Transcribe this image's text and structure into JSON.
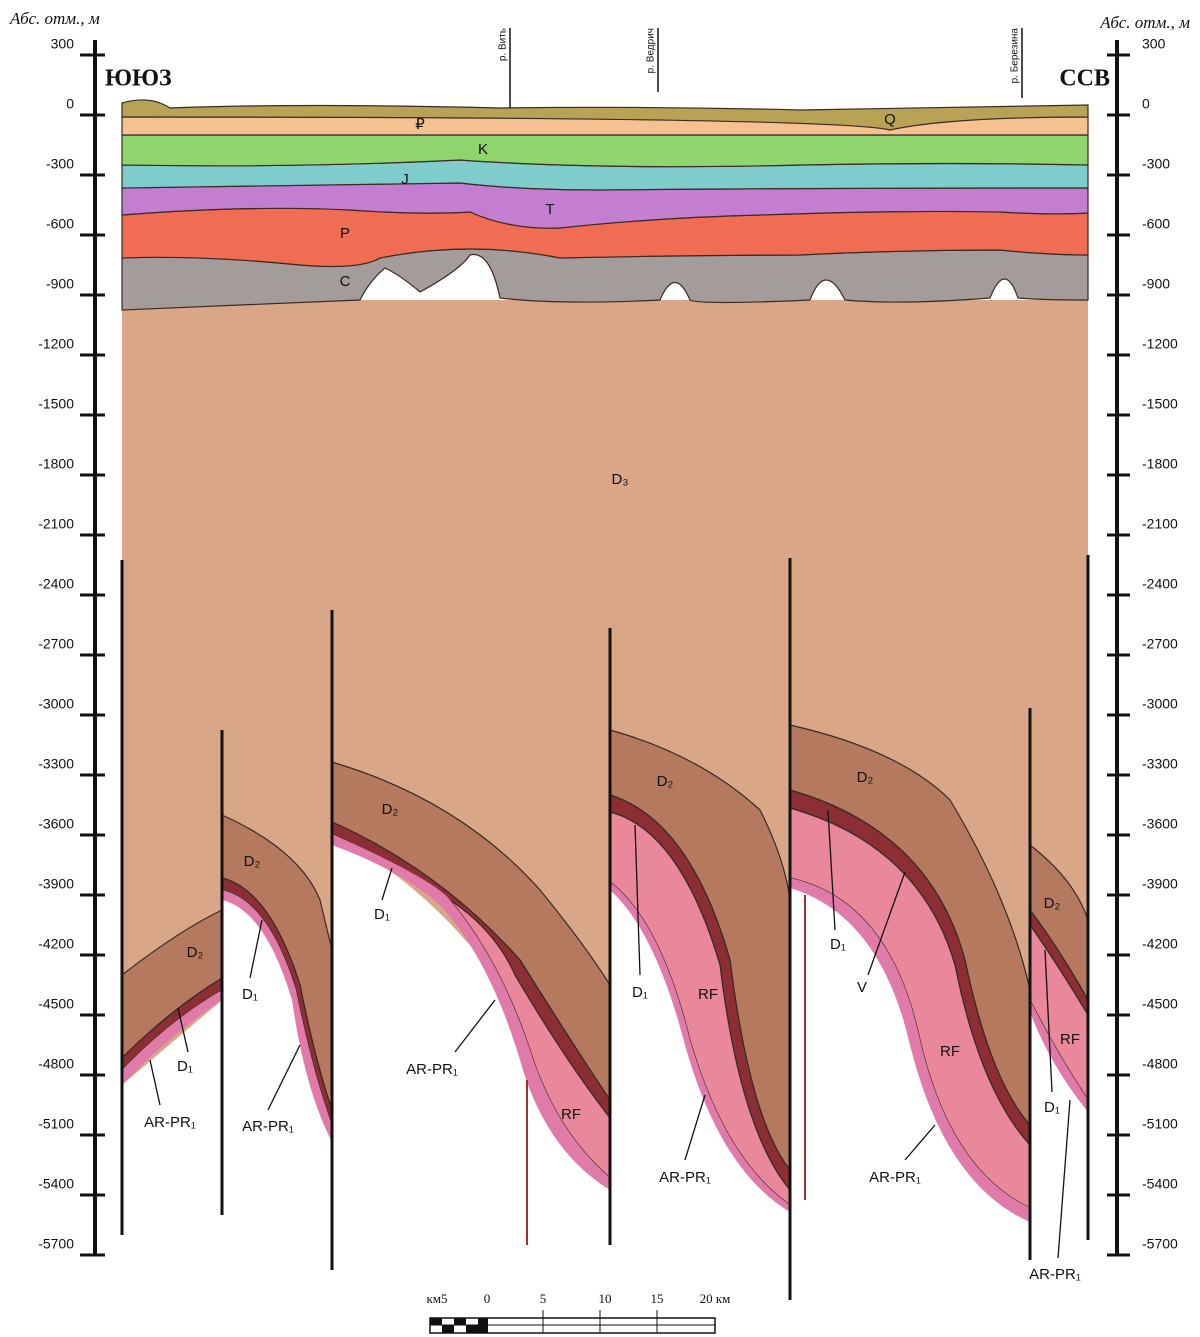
{
  "axis": {
    "left_title": "Абс. отм., м",
    "right_title": "Абс. отм., м",
    "ticks": [
      300,
      0,
      -300,
      -600,
      -900,
      -1200,
      -1500,
      -1800,
      -2100,
      -2400,
      -2700,
      -3000,
      -3300,
      -3600,
      -3900,
      -4200,
      -4500,
      -4800,
      -5100,
      -5400,
      -5700
    ]
  },
  "directions": {
    "left": "ЮЮЗ",
    "right": "ССВ"
  },
  "rivers": [
    "р. Вить",
    "р. Ведрич",
    "р. Березина"
  ],
  "layer_labels": [
    "Q",
    "₽",
    "K",
    "J",
    "T",
    "P",
    "C",
    "D₃",
    "D₂",
    "D₁",
    "AR-PR₁",
    "D₂",
    "D₁",
    "AR-PR₁",
    "D₂",
    "D₁",
    "AR-PR₁",
    "RF",
    "D₂",
    "D₁",
    "RF",
    "AR-PR₁",
    "D₂",
    "D₁",
    "V",
    "RF",
    "AR-PR₁",
    "D₂",
    "RF",
    "D₁",
    "AR-PR₁"
  ],
  "scale_bar": [
    "км5",
    "0",
    "5",
    "10",
    "15",
    "20 км"
  ]
}
